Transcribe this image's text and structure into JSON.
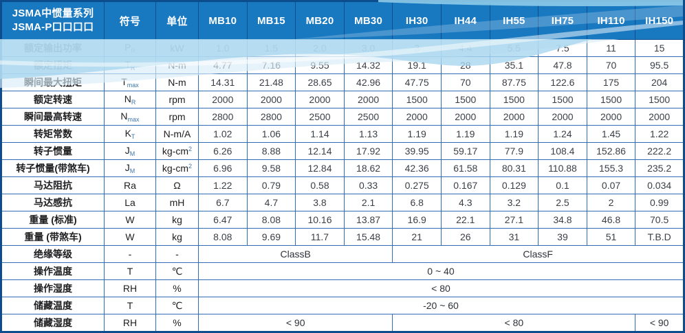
{
  "table": {
    "title_line1": "JSMA中惯量系列",
    "title_line2": "JSMA-P口口口口",
    "col_headers": [
      "符号",
      "单位",
      "MB10",
      "MB15",
      "MB20",
      "MB30",
      "IH30",
      "IH44",
      "IH55",
      "IH75",
      "IH110",
      "IH150"
    ],
    "rows": [
      {
        "label": "额定输出功率",
        "sym": "P",
        "sub": "R",
        "unit": "kW",
        "values": [
          "1.0",
          "1.5",
          "2.0",
          "3.0",
          "3",
          "4.4",
          "5.5",
          "7.5",
          "11",
          "15"
        ]
      },
      {
        "label": "额定扭矩",
        "sym": "T",
        "sub": "R",
        "unit": "N-m",
        "values": [
          "4.77",
          "7.16",
          "9.55",
          "14.32",
          "19.1",
          "28",
          "35.1",
          "47.8",
          "70",
          "95.5"
        ]
      },
      {
        "label": "瞬间最大扭矩",
        "sym": "T",
        "sub": "max",
        "unit": "N-m",
        "values": [
          "14.31",
          "21.48",
          "28.65",
          "42.96",
          "47.75",
          "70",
          "87.75",
          "122.6",
          "175",
          "204"
        ]
      },
      {
        "label": "额定转速",
        "sym": "N",
        "sub": "R",
        "unit": "rpm",
        "values": [
          "2000",
          "2000",
          "2000",
          "2000",
          "1500",
          "1500",
          "1500",
          "1500",
          "1500",
          "1500"
        ]
      },
      {
        "label": "瞬间最高转速",
        "sym": "N",
        "sub": "max",
        "unit": "rpm",
        "values": [
          "2800",
          "2800",
          "2500",
          "2500",
          "2000",
          "2000",
          "2000",
          "2000",
          "2000",
          "2000"
        ]
      },
      {
        "label": "转矩常数",
        "sym": "K",
        "sub": "T",
        "unit": "N-m/A",
        "values": [
          "1.02",
          "1.06",
          "1.14",
          "1.13",
          "1.19",
          "1.19",
          "1.19",
          "1.24",
          "1.45",
          "1.22"
        ]
      },
      {
        "label": "转子惯量",
        "sym": "J",
        "sub": "M",
        "unit": "kg-cm",
        "unit_sup": "2",
        "values": [
          "6.26",
          "8.88",
          "12.14",
          "17.92",
          "39.95",
          "59.17",
          "77.9",
          "108.4",
          "152.86",
          "222.2"
        ]
      },
      {
        "label": "转子惯量(带煞车)",
        "sym": "J",
        "sub": "M",
        "unit": "kg-cm",
        "unit_sup": "2",
        "values": [
          "6.96",
          "9.58",
          "12.84",
          "18.62",
          "42.36",
          "61.58",
          "80.31",
          "110.88",
          "155.3",
          "235.2"
        ]
      },
      {
        "label": "马达阻抗",
        "sym": "Ra",
        "sub": "",
        "unit": "Ω",
        "values": [
          "1.22",
          "0.79",
          "0.58",
          "0.33",
          "0.275",
          "0.167",
          "0.129",
          "0.1",
          "0.07",
          "0.034"
        ]
      },
      {
        "label": "马达感抗",
        "sym": "La",
        "sub": "",
        "unit": "mH",
        "values": [
          "6.7",
          "4.7",
          "3.8",
          "2.1",
          "6.8",
          "4.3",
          "3.2",
          "2.5",
          "2",
          "0.99"
        ]
      },
      {
        "label": "重量 (标准)",
        "sym": "W",
        "sub": "",
        "unit": "kg",
        "values": [
          "6.47",
          "8.08",
          "10.16",
          "13.87",
          "16.9",
          "22.1",
          "27.1",
          "34.8",
          "46.8",
          "70.5"
        ]
      },
      {
        "label": "重量 (带煞车)",
        "sym": "W",
        "sub": "",
        "unit": "kg",
        "values": [
          "8.08",
          "9.69",
          "11.7",
          "15.48",
          "21",
          "26",
          "31",
          "39",
          "51",
          "T.B.D"
        ]
      },
      {
        "label": "绝缘等级",
        "sym": "-",
        "sub": "",
        "unit": "-",
        "spans": [
          {
            "text": "ClassB",
            "cols": 4
          },
          {
            "text": "ClassF",
            "cols": 6
          }
        ]
      },
      {
        "label": "操作温度",
        "sym": "T",
        "sub": "",
        "unit": "℃",
        "spans": [
          {
            "text": "0 ~ 40",
            "cols": 10
          }
        ]
      },
      {
        "label": "操作湿度",
        "sym": "RH",
        "sub": "",
        "unit": "%",
        "spans": [
          {
            "text": "< 80",
            "cols": 10
          }
        ]
      },
      {
        "label": "储藏温度",
        "sym": "T",
        "sub": "",
        "unit": "℃",
        "spans": [
          {
            "text": "-20 ~ 60",
            "cols": 10
          }
        ]
      },
      {
        "label": "储藏湿度",
        "sym": "RH",
        "sub": "",
        "unit": "%",
        "spans": [
          {
            "text": "< 90",
            "cols": 4
          },
          {
            "text": "< 80",
            "cols": 5
          },
          {
            "text": "< 90",
            "cols": 1
          }
        ]
      }
    ],
    "colors": {
      "header_bg": "#1878c0",
      "frame": "#0d4d8d",
      "grid": "#2f6cb4",
      "value_text": "#3a3f46",
      "wave_light": "#d9edf8",
      "wave_mid": "#a9d6ef"
    }
  }
}
